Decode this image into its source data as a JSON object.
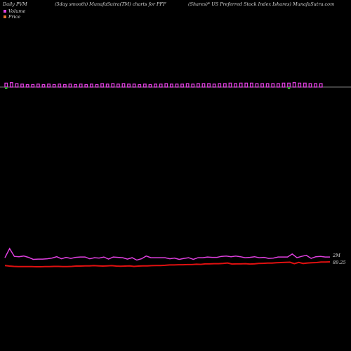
{
  "header": {
    "left": "Daily PVM",
    "center": "(5day smooth) MunafaSutra(TM) charts for PFF",
    "right": "(Shares)* US Preferred Stock Index Ishares) MunafaSutra.com"
  },
  "colors": {
    "background": "#000000",
    "volume": "#e040e0",
    "price": "#e01010",
    "up_bar": "#30a030"
  },
  "chart_data": {
    "type": "line",
    "legend": [
      {
        "name": "Volume",
        "color": "#e040e0"
      },
      {
        "name": "Price",
        "color": "#e01010"
      }
    ],
    "end_labels": {
      "volume": "2M",
      "price": "89.25"
    },
    "volume_smooth": [
      2.3,
      5.0,
      2.7,
      2.6,
      2.8,
      2.4,
      1.8,
      1.9,
      1.9,
      2.0,
      2.2,
      2.6,
      2.0,
      2.4,
      2.1,
      2.4,
      2.5,
      2.5,
      2.0,
      2.3,
      2.2,
      2.5,
      1.9,
      2.5,
      2.4,
      2.3,
      1.9,
      2.3,
      1.6,
      2.0,
      2.8,
      2.3,
      2.3,
      2.3,
      2.3,
      2.0,
      2.2,
      1.8,
      2.1,
      2.3,
      1.8,
      2.3,
      2.3,
      2.5,
      2.4,
      2.4,
      2.7,
      2.8,
      2.6,
      2.8,
      2.6,
      2.3,
      2.4,
      2.6,
      2.3,
      2.4,
      2.1,
      2.2,
      2.5,
      2.5,
      2.5,
      3.4,
      2.3,
      2.7,
      3.0,
      2.1,
      2.6,
      2.7,
      2.5,
      2.5
    ],
    "price": [
      89.05,
      89.02,
      89.0,
      88.99,
      88.99,
      88.99,
      88.99,
      88.98,
      88.98,
      88.99,
      88.99,
      89.0,
      89.0,
      88.99,
      88.99,
      89.0,
      89.02,
      89.02,
      89.03,
      89.03,
      89.04,
      89.03,
      89.02,
      89.03,
      89.04,
      89.02,
      89.01,
      89.02,
      89.03,
      89.0,
      89.02,
      89.03,
      89.03,
      89.04,
      89.05,
      89.05,
      89.06,
      89.08,
      89.08,
      89.09,
      89.09,
      89.1,
      89.1,
      89.12,
      89.11,
      89.14,
      89.14,
      89.15,
      89.15,
      89.16,
      89.19,
      89.13,
      89.14,
      89.14,
      89.15,
      89.13,
      89.14,
      89.16,
      89.17,
      89.18,
      89.18,
      89.2,
      89.21,
      89.22,
      89.23,
      89.15,
      89.22,
      89.16,
      89.19,
      89.2,
      89.21,
      89.24,
      89.24,
      89.25
    ],
    "pvm_bars": [
      {
        "dir": "up",
        "mag": 0.8
      },
      {
        "dir": "up",
        "mag": 0.9
      },
      {
        "dir": "up",
        "mag": 0.7
      },
      {
        "dir": "up",
        "mag": 0.6
      },
      {
        "dir": "up",
        "mag": 0.5
      },
      {
        "dir": "up",
        "mag": 0.5
      },
      {
        "dir": "up",
        "mag": 0.6
      },
      {
        "dir": "up",
        "mag": 0.5
      },
      {
        "dir": "up",
        "mag": 0.6
      },
      {
        "dir": "up",
        "mag": 0.5
      },
      {
        "dir": "up",
        "mag": 0.6
      },
      {
        "dir": "up",
        "mag": 0.5
      },
      {
        "dir": "up",
        "mag": 0.6
      },
      {
        "dir": "up",
        "mag": 0.5
      },
      {
        "dir": "up",
        "mag": 0.6
      },
      {
        "dir": "up",
        "mag": 0.5
      },
      {
        "dir": "up",
        "mag": 0.6
      },
      {
        "dir": "up",
        "mag": 0.5
      },
      {
        "dir": "up",
        "mag": 0.7
      },
      {
        "dir": "up",
        "mag": 0.6
      },
      {
        "dir": "up",
        "mag": 0.7
      },
      {
        "dir": "up",
        "mag": 0.6
      },
      {
        "dir": "up",
        "mag": 0.7
      },
      {
        "dir": "up",
        "mag": 0.6
      },
      {
        "dir": "up",
        "mag": 0.6
      },
      {
        "dir": "up",
        "mag": 0.5
      },
      {
        "dir": "up",
        "mag": 0.6
      },
      {
        "dir": "up",
        "mag": 0.5
      },
      {
        "dir": "up",
        "mag": 0.6
      },
      {
        "dir": "up",
        "mag": 0.6
      },
      {
        "dir": "up",
        "mag": 0.7
      },
      {
        "dir": "up",
        "mag": 0.6
      },
      {
        "dir": "up",
        "mag": 0.6
      },
      {
        "dir": "up",
        "mag": 0.6
      },
      {
        "dir": "up",
        "mag": 0.7
      },
      {
        "dir": "up",
        "mag": 0.6
      },
      {
        "dir": "up",
        "mag": 0.7
      },
      {
        "dir": "up",
        "mag": 0.7
      },
      {
        "dir": "up",
        "mag": 0.7
      },
      {
        "dir": "up",
        "mag": 0.6
      },
      {
        "dir": "up",
        "mag": 0.7
      },
      {
        "dir": "up",
        "mag": 0.7
      },
      {
        "dir": "up",
        "mag": 0.8
      },
      {
        "dir": "up",
        "mag": 0.7
      },
      {
        "dir": "up",
        "mag": 0.8
      },
      {
        "dir": "up",
        "mag": 0.8
      },
      {
        "dir": "up",
        "mag": 0.8
      },
      {
        "dir": "up",
        "mag": 0.7
      },
      {
        "dir": "up",
        "mag": 0.7
      },
      {
        "dir": "up",
        "mag": 0.7
      },
      {
        "dir": "up",
        "mag": 0.7
      },
      {
        "dir": "up",
        "mag": 0.7
      },
      {
        "dir": "up",
        "mag": 0.8
      },
      {
        "dir": "up",
        "mag": 0.8
      },
      {
        "dir": "up",
        "mag": 0.9
      },
      {
        "dir": "up",
        "mag": 0.8
      },
      {
        "dir": "up",
        "mag": 0.8
      },
      {
        "dir": "up",
        "mag": 0.7
      },
      {
        "dir": "up",
        "mag": 0.7
      },
      {
        "dir": "up",
        "mag": 0.7
      }
    ]
  }
}
